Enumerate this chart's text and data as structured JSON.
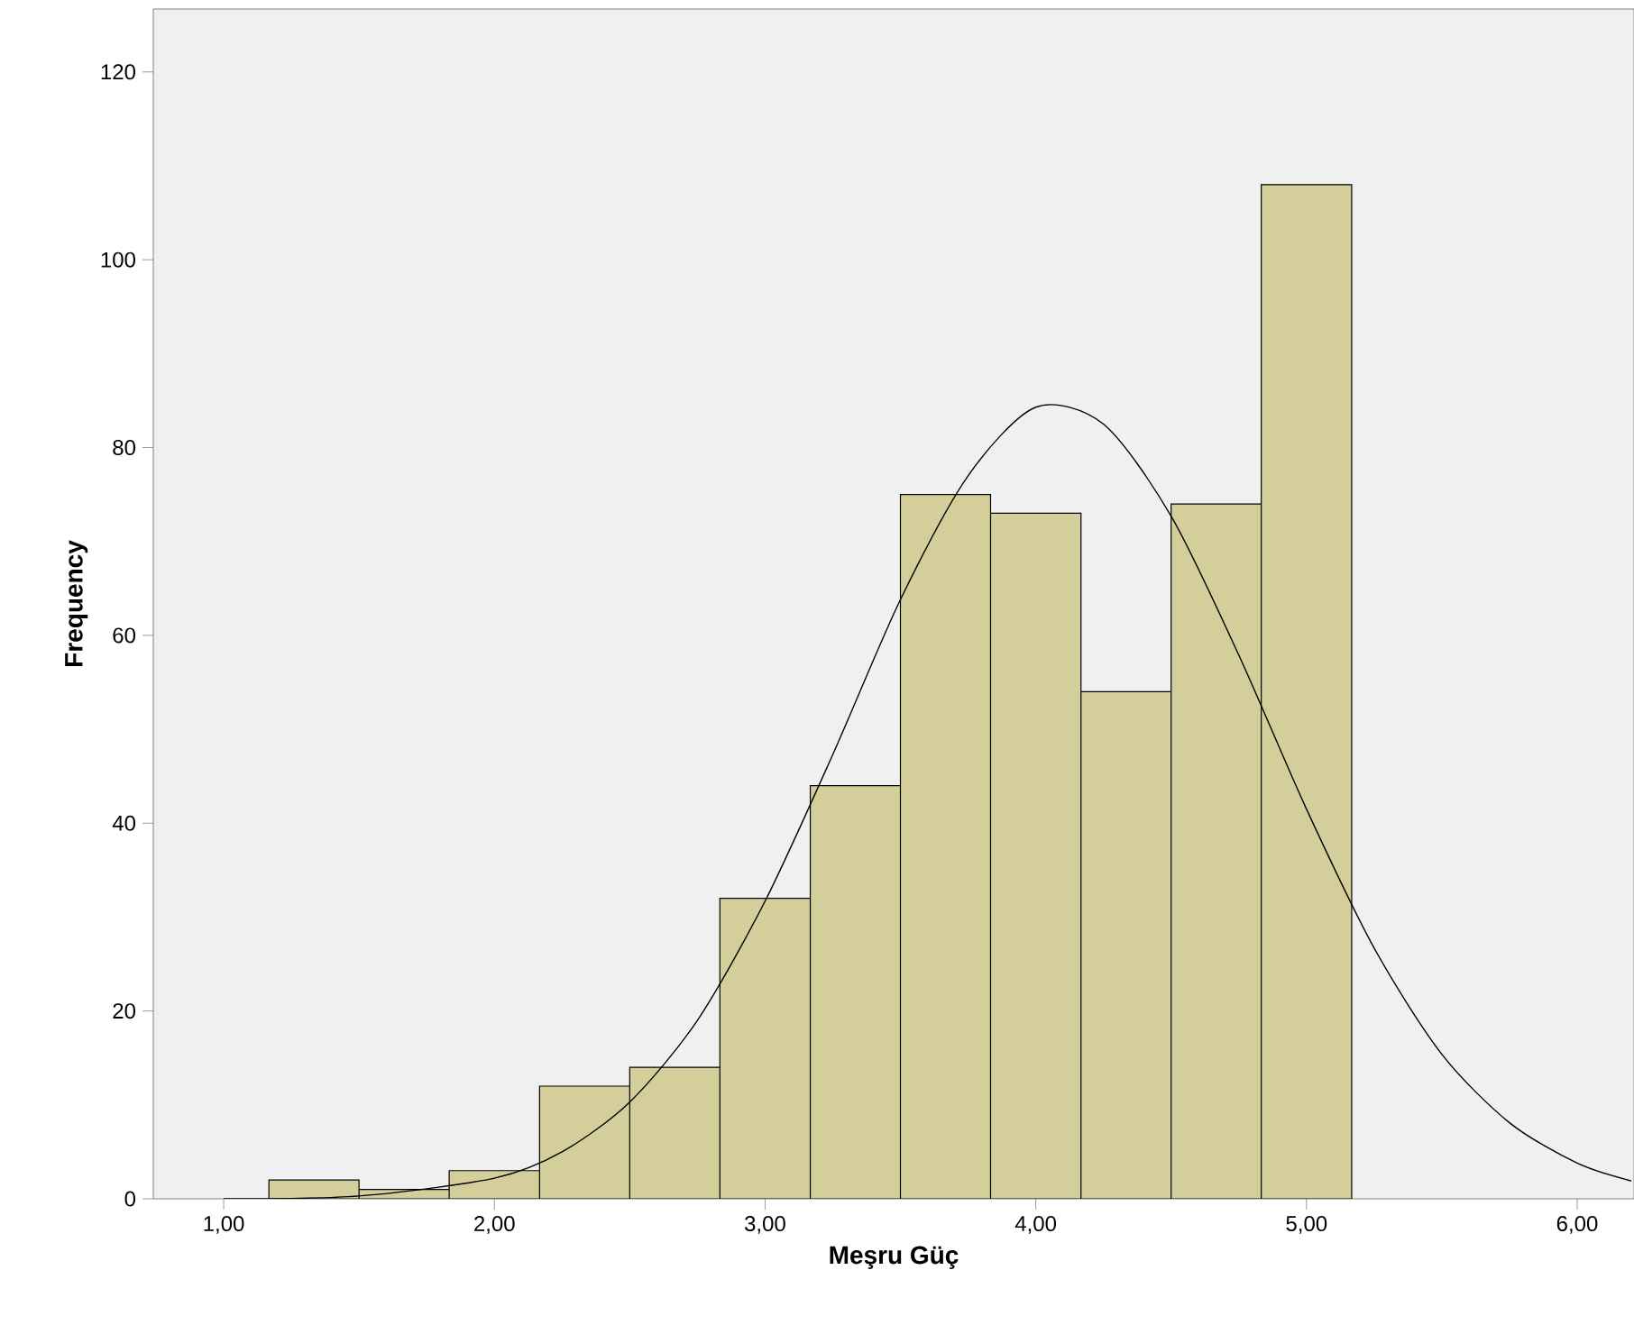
{
  "chart_data": {
    "type": "histogram",
    "xlabel": "Meşru Güç",
    "ylabel": "Frequency",
    "xlim": [
      0.74,
      6.21
    ],
    "ylim": [
      0,
      126.7
    ],
    "xticks": [
      {
        "value": 1,
        "label": "1,00"
      },
      {
        "value": 2,
        "label": "2,00"
      },
      {
        "value": 3,
        "label": "3,00"
      },
      {
        "value": 4,
        "label": "4,00"
      },
      {
        "value": 5,
        "label": "5,00"
      },
      {
        "value": 6,
        "label": "6,00"
      }
    ],
    "yticks": [
      0,
      20,
      40,
      60,
      80,
      100,
      120
    ],
    "series": [
      {
        "color": "#d3ce9a",
        "bins": [
          1.167,
          1.5,
          1.833,
          2.167,
          2.5,
          2.833,
          3.167,
          3.5,
          3.833,
          4.167,
          4.5,
          4.833,
          5.167
        ],
        "values": [
          2,
          1,
          3,
          12,
          14,
          32,
          44,
          75,
          73,
          54,
          74,
          108
        ]
      },
      {
        "type": "line",
        "color": "#000000",
        "x": [
          1.0,
          1.5,
          2.0,
          2.25,
          2.5,
          2.75,
          3.0,
          3.25,
          3.5,
          3.75,
          4.0,
          4.25,
          4.5,
          4.75,
          5.0,
          5.25,
          5.5,
          5.75,
          6.0,
          6.2
        ],
        "values": [
          0,
          0.3,
          2.2,
          5.0,
          10.3,
          19,
          31.7,
          47.3,
          63.8,
          77,
          84.3,
          82.5,
          72.7,
          57.9,
          41.5,
          26.7,
          15.4,
          8.1,
          3.8,
          1.9
        ]
      }
    ]
  }
}
